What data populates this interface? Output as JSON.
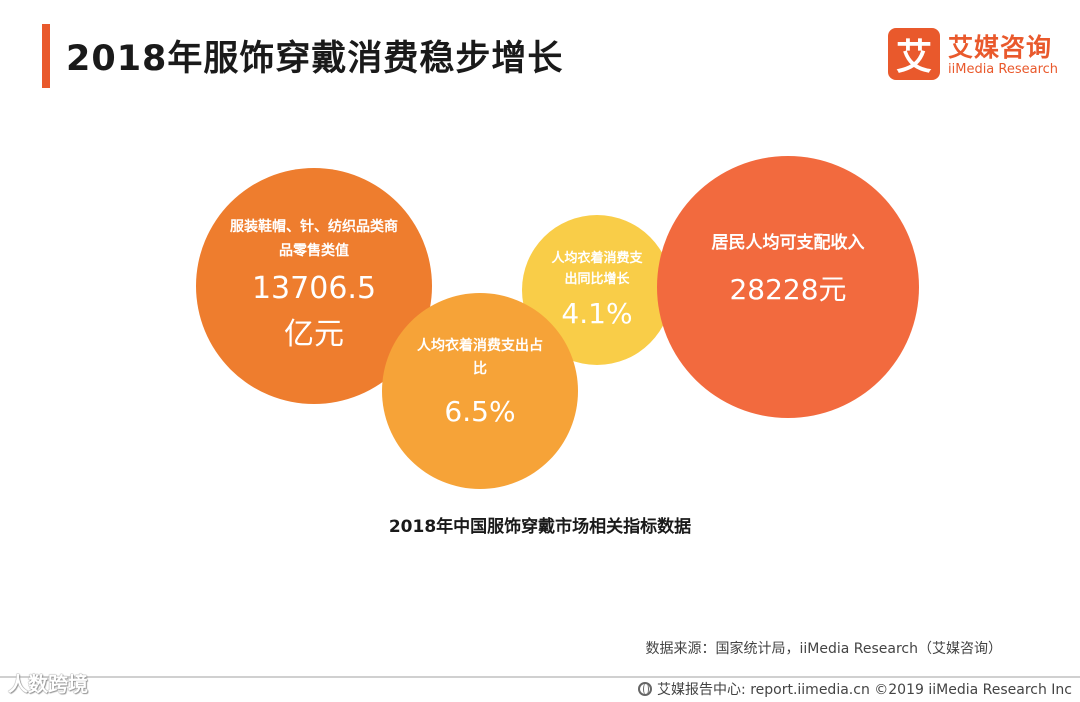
{
  "header": {
    "title": "2018年服饰穿戴消费稳步增长",
    "accent_color": "#e9592c"
  },
  "logo": {
    "mark": "艾",
    "name_cn": "艾媒咨询",
    "name_en": "iiMedia Research"
  },
  "diagram": {
    "bubbles": [
      {
        "label": "服装鞋帽、针、纺织品类商品零售类值",
        "value": "13706.5",
        "unit": "亿元",
        "color": "#ee7d2e"
      },
      {
        "label": "人均衣着消费支出占比",
        "value": "6.5%",
        "color": "#f6a338"
      },
      {
        "label": "人均衣着消费支出同比增长",
        "value": "4.1%",
        "color": "#f9cd48"
      },
      {
        "label": "居民人均可支配收入",
        "value": "28228元",
        "color": "#f26a3e"
      }
    ],
    "caption": "2018年中国服饰穿戴市场相关指标数据"
  },
  "source": "数据来源：国家统计局，iiMedia Research（艾媒咨询）",
  "footer": {
    "text": "艾媒报告中心: report.iimedia.cn ©2019 iiMedia Research Inc"
  },
  "watermark": "人数跨境"
}
